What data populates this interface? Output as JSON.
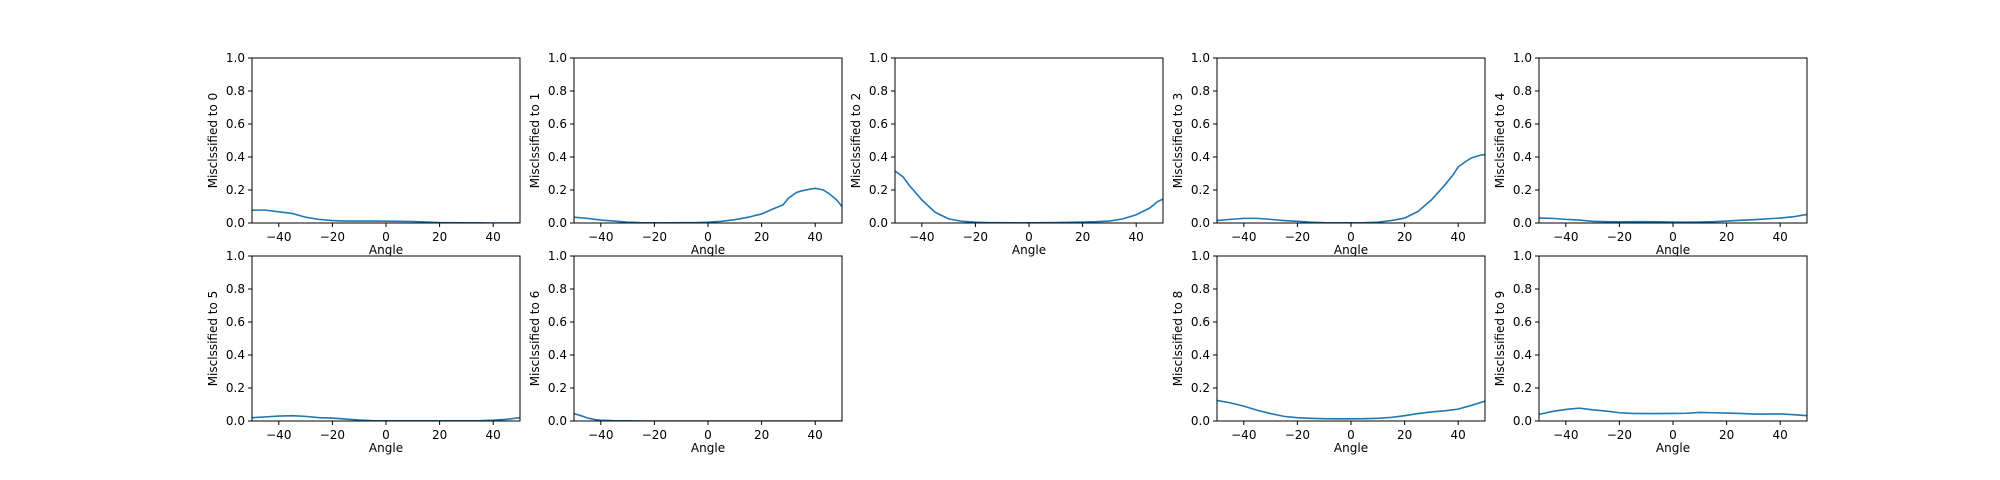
{
  "chart_data": [
    {
      "type": "line",
      "xlabel": "Angle",
      "ylabel": "Misclssified to 0",
      "xlim": [
        -50,
        50
      ],
      "ylim": [
        0,
        1
      ],
      "xticks": [
        -40,
        -20,
        0,
        20,
        40
      ],
      "yticks": [
        0.0,
        0.2,
        0.4,
        0.6,
        0.8,
        1.0
      ],
      "series": [
        {
          "x": [
            -50,
            -45,
            -40,
            -35,
            -30,
            -25,
            -20,
            -15,
            -10,
            -5,
            0,
            5,
            10,
            15,
            20,
            25,
            30,
            35,
            40,
            45,
            50
          ],
          "y": [
            0.078,
            0.078,
            0.068,
            0.058,
            0.035,
            0.022,
            0.015,
            0.012,
            0.012,
            0.012,
            0.011,
            0.01,
            0.009,
            0.006,
            0.003,
            0.002,
            0.001,
            0.001,
            0.0,
            0.0,
            0.0
          ]
        }
      ]
    },
    {
      "type": "line",
      "xlabel": "Angle",
      "ylabel": "Misclssified to 1",
      "xlim": [
        -50,
        50
      ],
      "ylim": [
        0,
        1
      ],
      "xticks": [
        -40,
        -20,
        0,
        20,
        40
      ],
      "yticks": [
        0.0,
        0.2,
        0.4,
        0.6,
        0.8,
        1.0
      ],
      "series": [
        {
          "x": [
            -50,
            -45,
            -40,
            -35,
            -30,
            -25,
            -20,
            -15,
            -10,
            -5,
            0,
            5,
            10,
            15,
            20,
            25,
            28,
            30,
            33,
            35,
            38,
            40,
            43,
            45,
            48,
            50
          ],
          "y": [
            0.035,
            0.028,
            0.018,
            0.012,
            0.005,
            0.002,
            0.001,
            0.001,
            0.002,
            0.002,
            0.005,
            0.01,
            0.02,
            0.035,
            0.055,
            0.09,
            0.11,
            0.15,
            0.185,
            0.195,
            0.205,
            0.21,
            0.2,
            0.18,
            0.14,
            0.1
          ]
        }
      ]
    },
    {
      "type": "line",
      "xlabel": "Angle",
      "ylabel": "Misclssified to 2",
      "xlim": [
        -50,
        50
      ],
      "ylim": [
        0,
        1
      ],
      "xticks": [
        -40,
        -20,
        0,
        20,
        40
      ],
      "yticks": [
        0.0,
        0.2,
        0.4,
        0.6,
        0.8,
        1.0
      ],
      "series": [
        {
          "x": [
            -50,
            -47,
            -45,
            -40,
            -35,
            -30,
            -25,
            -20,
            -15,
            -10,
            -5,
            0,
            5,
            10,
            15,
            20,
            25,
            30,
            35,
            40,
            45,
            48,
            50
          ],
          "y": [
            0.315,
            0.28,
            0.235,
            0.14,
            0.065,
            0.025,
            0.01,
            0.005,
            0.002,
            0.002,
            0.001,
            0.001,
            0.002,
            0.003,
            0.004,
            0.006,
            0.008,
            0.012,
            0.025,
            0.05,
            0.09,
            0.13,
            0.145
          ]
        }
      ]
    },
    {
      "type": "line",
      "xlabel": "Angle",
      "ylabel": "Misclssified to 3",
      "xlim": [
        -50,
        50
      ],
      "ylim": [
        0,
        1
      ],
      "xticks": [
        -40,
        -20,
        0,
        20,
        40
      ],
      "yticks": [
        0.0,
        0.2,
        0.4,
        0.6,
        0.8,
        1.0
      ],
      "series": [
        {
          "x": [
            -50,
            -45,
            -40,
            -35,
            -30,
            -25,
            -20,
            -15,
            -10,
            -5,
            0,
            5,
            10,
            15,
            20,
            25,
            30,
            35,
            38,
            40,
            43,
            45,
            48,
            50
          ],
          "y": [
            0.015,
            0.022,
            0.028,
            0.028,
            0.022,
            0.015,
            0.01,
            0.005,
            0.002,
            0.001,
            0.001,
            0.002,
            0.005,
            0.015,
            0.03,
            0.07,
            0.14,
            0.23,
            0.29,
            0.34,
            0.375,
            0.395,
            0.41,
            0.415
          ]
        }
      ]
    },
    {
      "type": "line",
      "xlabel": "Angle",
      "ylabel": "Misclssified to 4",
      "xlim": [
        -50,
        50
      ],
      "ylim": [
        0,
        1
      ],
      "xticks": [
        -40,
        -20,
        0,
        20,
        40
      ],
      "yticks": [
        0.0,
        0.2,
        0.4,
        0.6,
        0.8,
        1.0
      ],
      "series": [
        {
          "x": [
            -50,
            -45,
            -40,
            -35,
            -30,
            -25,
            -20,
            -15,
            -10,
            -5,
            0,
            5,
            10,
            15,
            20,
            25,
            30,
            35,
            40,
            45,
            50
          ],
          "y": [
            0.03,
            0.028,
            0.022,
            0.018,
            0.01,
            0.008,
            0.007,
            0.008,
            0.008,
            0.007,
            0.006,
            0.005,
            0.006,
            0.008,
            0.012,
            0.016,
            0.02,
            0.025,
            0.03,
            0.038,
            0.052
          ]
        }
      ]
    },
    {
      "type": "line",
      "xlabel": "Angle",
      "ylabel": "Misclssified to 5",
      "xlim": [
        -50,
        50
      ],
      "ylim": [
        0,
        1
      ],
      "xticks": [
        -40,
        -20,
        0,
        20,
        40
      ],
      "yticks": [
        0.0,
        0.2,
        0.4,
        0.6,
        0.8,
        1.0
      ],
      "series": [
        {
          "x": [
            -50,
            -45,
            -40,
            -35,
            -30,
            -25,
            -20,
            -15,
            -10,
            -5,
            0,
            5,
            10,
            15,
            20,
            25,
            30,
            35,
            40,
            45,
            50
          ],
          "y": [
            0.02,
            0.025,
            0.03,
            0.032,
            0.028,
            0.02,
            0.018,
            0.012,
            0.006,
            0.002,
            0.001,
            0.001,
            0.001,
            0.001,
            0.001,
            0.001,
            0.001,
            0.002,
            0.005,
            0.01,
            0.02
          ]
        }
      ]
    },
    {
      "type": "line",
      "xlabel": "Angle",
      "ylabel": "Misclssified to 6",
      "xlim": [
        -50,
        50
      ],
      "ylim": [
        0,
        1
      ],
      "xticks": [
        -40,
        -20,
        0,
        20,
        40
      ],
      "yticks": [
        0.0,
        0.2,
        0.4,
        0.6,
        0.8,
        1.0
      ],
      "series": [
        {
          "x": [
            -50,
            -47,
            -45,
            -42,
            -40,
            -35,
            -30,
            -20,
            -10,
            0,
            10,
            20,
            30,
            40,
            50
          ],
          "y": [
            0.045,
            0.03,
            0.018,
            0.008,
            0.005,
            0.002,
            0.001,
            0.0,
            0.0,
            0.0,
            0.0,
            0.0,
            0.0,
            0.0,
            0.0
          ]
        }
      ]
    },
    {
      "type": "line",
      "xlabel": "Angle",
      "ylabel": "Misclssified to 8",
      "xlim": [
        -50,
        50
      ],
      "ylim": [
        0,
        1
      ],
      "xticks": [
        -40,
        -20,
        0,
        20,
        40
      ],
      "yticks": [
        0.0,
        0.2,
        0.4,
        0.6,
        0.8,
        1.0
      ],
      "series": [
        {
          "x": [
            -50,
            -45,
            -40,
            -35,
            -30,
            -25,
            -20,
            -15,
            -10,
            -5,
            0,
            5,
            10,
            15,
            20,
            25,
            30,
            35,
            40,
            45,
            50
          ],
          "y": [
            0.125,
            0.11,
            0.09,
            0.065,
            0.045,
            0.028,
            0.02,
            0.016,
            0.014,
            0.013,
            0.013,
            0.014,
            0.016,
            0.022,
            0.032,
            0.045,
            0.055,
            0.062,
            0.072,
            0.095,
            0.12
          ]
        }
      ]
    },
    {
      "type": "line",
      "xlabel": "Angle",
      "ylabel": "Misclssified to 9",
      "xlim": [
        -50,
        50
      ],
      "ylim": [
        0,
        1
      ],
      "xticks": [
        -40,
        -20,
        0,
        20,
        40
      ],
      "yticks": [
        0.0,
        0.2,
        0.4,
        0.6,
        0.8,
        1.0
      ],
      "series": [
        {
          "x": [
            -50,
            -45,
            -40,
            -35,
            -30,
            -25,
            -20,
            -15,
            -10,
            -5,
            0,
            5,
            10,
            15,
            20,
            25,
            30,
            35,
            40,
            45,
            50
          ],
          "y": [
            0.04,
            0.058,
            0.07,
            0.078,
            0.068,
            0.06,
            0.05,
            0.046,
            0.045,
            0.045,
            0.046,
            0.047,
            0.052,
            0.05,
            0.048,
            0.046,
            0.042,
            0.042,
            0.043,
            0.038,
            0.032
          ]
        }
      ]
    }
  ],
  "colors": {
    "line": "#1f77b4",
    "axes": "#000000",
    "background": "#ffffff"
  }
}
